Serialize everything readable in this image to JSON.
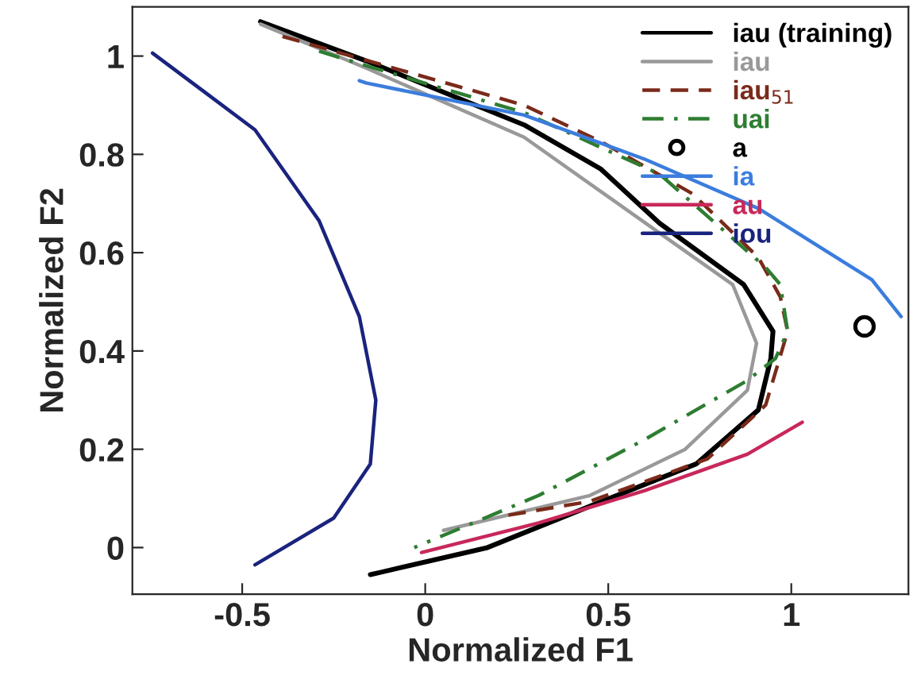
{
  "chart_data": {
    "type": "line",
    "xlabel": "Normalized F1",
    "ylabel": "Normalized F2",
    "xlim": [
      -0.8,
      1.32
    ],
    "ylim": [
      -0.095,
      1.1
    ],
    "xticks": [
      -0.5,
      0,
      0.5,
      1
    ],
    "yticks": [
      0,
      0.2,
      0.4,
      0.6,
      0.8,
      1
    ],
    "grid": false,
    "legend": "top right",
    "series": [
      {
        "name": "iau (training)",
        "color": "#000000",
        "line_style": "solid",
        "x": [
          -0.45,
          -0.16,
          0.27,
          0.48,
          0.64,
          0.87,
          0.95,
          0.944,
          0.91,
          0.74,
          0.45,
          0.17,
          -0.12,
          -0.15
        ],
        "values": [
          1.07,
          0.99,
          0.86,
          0.77,
          0.66,
          0.535,
          0.44,
          0.384,
          0.28,
          0.17,
          0.084,
          0.0,
          -0.05,
          -0.055
        ]
      },
      {
        "name": "iau",
        "color": "#999999",
        "line_style": "solid",
        "x": [
          -0.45,
          -0.16,
          0.27,
          0.64,
          0.84,
          0.905,
          0.88,
          0.71,
          0.45,
          0.05
        ],
        "values": [
          1.065,
          0.975,
          0.835,
          0.64,
          0.535,
          0.416,
          0.32,
          0.2,
          0.106,
          0.035
        ]
      },
      {
        "name": "iau$_{51}$",
        "color": "#7a2a1a",
        "line_style": "dashed",
        "x": [
          -0.39,
          0.27,
          0.48,
          0.73,
          0.91,
          0.97,
          0.99,
          0.93,
          0.77,
          0.45,
          0.22
        ],
        "values": [
          1.04,
          0.9,
          0.826,
          0.72,
          0.59,
          0.51,
          0.44,
          0.29,
          0.18,
          0.094,
          0.065
        ]
      },
      {
        "name": "uai",
        "color": "#2e7d32",
        "line_style": "dashdot",
        "x": [
          -0.29,
          -0.16,
          0.27,
          0.64,
          0.93,
          0.97,
          0.99,
          0.957,
          0.88,
          0.6,
          0.31,
          -0.03
        ],
        "values": [
          1.01,
          0.98,
          0.885,
          0.76,
          0.57,
          0.535,
          0.44,
          0.385,
          0.34,
          0.22,
          0.106,
          0.0
        ]
      },
      {
        "name": "a",
        "type": "scatter",
        "color": "#000000",
        "marker": "circle",
        "x": [
          1.2
        ],
        "values": [
          0.45
        ]
      },
      {
        "name": "ia",
        "color": "#3b7ddd",
        "line_style": "solid",
        "x": [
          -0.18,
          -0.16,
          0.27,
          0.6,
          0.91,
          1.22,
          1.3
        ],
        "values": [
          0.95,
          0.945,
          0.88,
          0.79,
          0.69,
          0.545,
          0.47
        ]
      },
      {
        "name": "au",
        "color": "#c8285a",
        "line_style": "solid",
        "x": [
          -0.01,
          0.31,
          0.6,
          0.88,
          1.03
        ],
        "values": [
          -0.01,
          0.05,
          0.116,
          0.19,
          0.255
        ]
      },
      {
        "name": "iou",
        "color": "#1a237e",
        "line_style": "solid",
        "x": [
          -0.745,
          -0.465,
          -0.29,
          -0.18,
          -0.135,
          -0.15,
          -0.25,
          -0.465
        ],
        "values": [
          1.006,
          0.85,
          0.665,
          0.47,
          0.3,
          0.17,
          0.06,
          -0.035
        ]
      }
    ]
  }
}
